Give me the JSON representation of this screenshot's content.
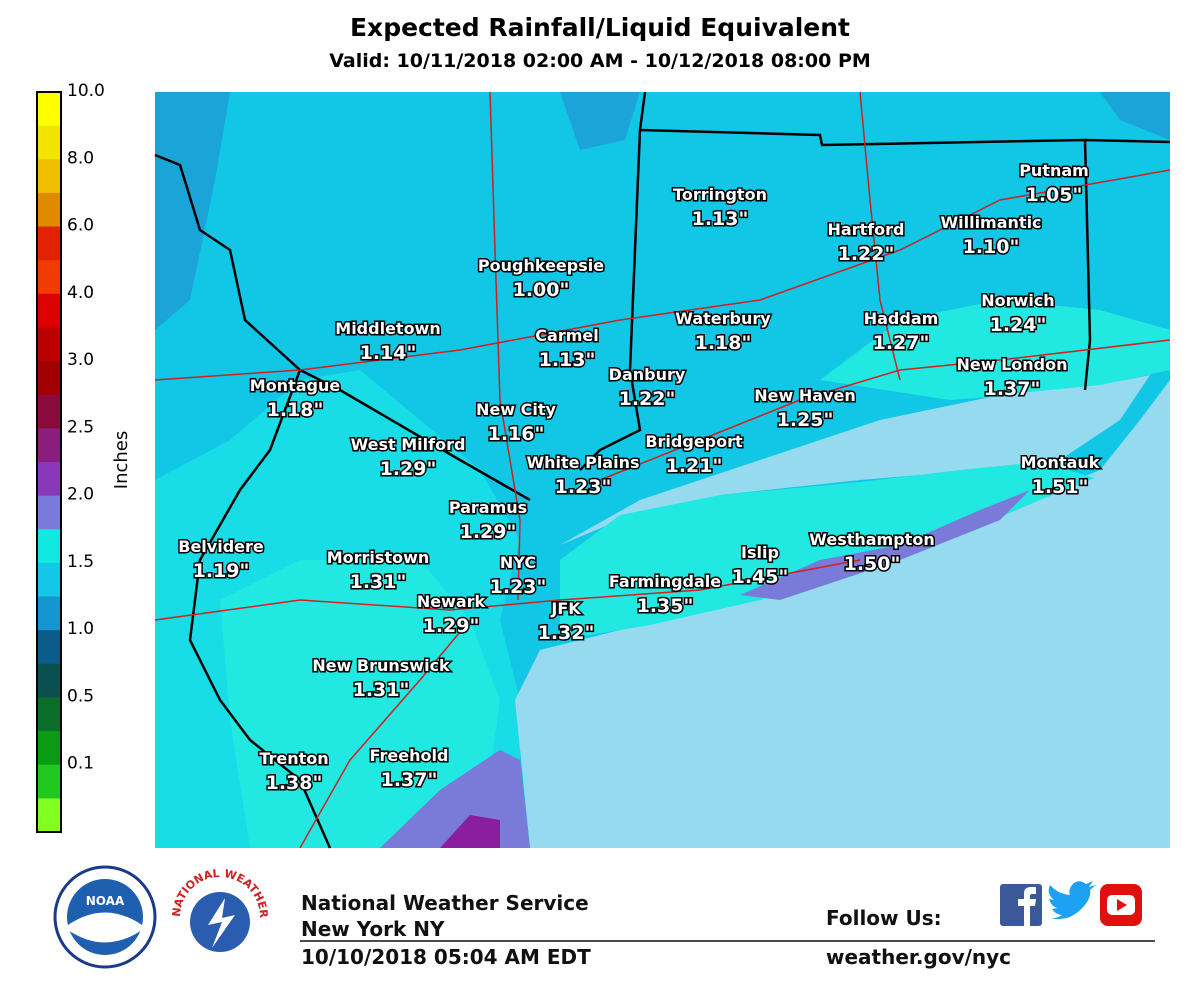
{
  "header": {
    "title": "Expected Rainfall/Liquid Equivalent",
    "subtitle": "Valid: 10/11/2018 02:00 AM - 10/12/2018 08:00 PM"
  },
  "legend": {
    "axis_label": "Inches",
    "ticks": [
      "10.0",
      "8.0",
      "6.0",
      "4.0",
      "3.0",
      "2.5",
      "2.0",
      "1.5",
      "1.0",
      "0.5",
      "0.1"
    ],
    "colors": [
      "#ffff00",
      "#f2e400",
      "#f0c000",
      "#e08a00",
      "#e02200",
      "#f03c00",
      "#dd0000",
      "#bb0000",
      "#a00000",
      "#8a0a3c",
      "#8a1e7c",
      "#8838b8",
      "#7a7ad8",
      "#10e8e0",
      "#16c6e6",
      "#1496d0",
      "#0a5a8a",
      "#0a5050",
      "#0a6e28",
      "#0a9a14",
      "#20c820",
      "#80ff20"
    ]
  },
  "map": {
    "cities": [
      {
        "name": "Putnam",
        "amount": "1.05\""
      },
      {
        "name": "Torrington",
        "amount": "1.13\""
      },
      {
        "name": "Hartford",
        "amount": "1.22\""
      },
      {
        "name": "Willimantic",
        "amount": "1.10\""
      },
      {
        "name": "Poughkeepsie",
        "amount": "1.00\""
      },
      {
        "name": "Norwich",
        "amount": "1.24\""
      },
      {
        "name": "Middletown",
        "amount": "1.14\""
      },
      {
        "name": "Carmel",
        "amount": "1.13\""
      },
      {
        "name": "Waterbury",
        "amount": "1.18\""
      },
      {
        "name": "Haddam",
        "amount": "1.27\""
      },
      {
        "name": "Danbury",
        "amount": "1.22\""
      },
      {
        "name": "New London",
        "amount": "1.37\""
      },
      {
        "name": "Montague",
        "amount": "1.18\""
      },
      {
        "name": "New Haven",
        "amount": "1.25\""
      },
      {
        "name": "New City",
        "amount": "1.16\""
      },
      {
        "name": "West Milford",
        "amount": "1.29\""
      },
      {
        "name": "Bridgeport",
        "amount": "1.21\""
      },
      {
        "name": "White Plains",
        "amount": "1.23\""
      },
      {
        "name": "Montauk",
        "amount": "1.51\""
      },
      {
        "name": "Paramus",
        "amount": "1.29\""
      },
      {
        "name": "Westhampton",
        "amount": "1.50\""
      },
      {
        "name": "Belvidere",
        "amount": "1.19\""
      },
      {
        "name": "Morristown",
        "amount": "1.31\""
      },
      {
        "name": "Islip",
        "amount": "1.45\""
      },
      {
        "name": "NYC",
        "amount": "1.23\""
      },
      {
        "name": "Farmingdale",
        "amount": "1.35\""
      },
      {
        "name": "Newark",
        "amount": "1.29\""
      },
      {
        "name": "JFK",
        "amount": "1.32\""
      },
      {
        "name": "New Brunswick",
        "amount": "1.31\""
      },
      {
        "name": "Trenton",
        "amount": "1.38\""
      },
      {
        "name": "Freehold",
        "amount": "1.37\""
      }
    ]
  },
  "footer": {
    "noaa_logo": "NOAA",
    "nws_logo": "NATIONAL WEATHER SERVICE",
    "office": "National Weather Service",
    "location": "New York NY",
    "issued": "10/10/2018 05:04 AM EDT",
    "follow": "Follow Us:",
    "url": "weather.gov/nyc"
  }
}
